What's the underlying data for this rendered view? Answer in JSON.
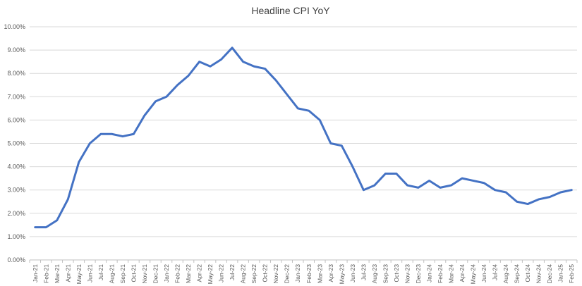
{
  "chart_data": {
    "type": "line",
    "title": "Headline CPI YoY",
    "xlabel": "",
    "ylabel": "",
    "ylim": [
      0,
      10
    ],
    "y_ticks": [
      "0.00%",
      "1.00%",
      "2.00%",
      "3.00%",
      "4.00%",
      "5.00%",
      "6.00%",
      "7.00%",
      "8.00%",
      "9.00%",
      "10.00%"
    ],
    "grid": true,
    "legend": "none",
    "categories": [
      "Jan-21",
      "Feb-21",
      "Mar-21",
      "Apr-21",
      "May-21",
      "Jun-21",
      "Jul-21",
      "Aug-21",
      "Sep-21",
      "Oct-21",
      "Nov-21",
      "Dec-21",
      "Jan-22",
      "Feb-22",
      "Mar-22",
      "Apr-22",
      "May-22",
      "Jun-22",
      "Jul-22",
      "Aug-22",
      "Sep-22",
      "Oct-22",
      "Nov-22",
      "Dec-22",
      "Jan-23",
      "Feb-23",
      "Mar-23",
      "Apr-23",
      "May-23",
      "Jun-23",
      "Jul-23",
      "Aug-23",
      "Sep-23",
      "Oct-23",
      "Nov-23",
      "Dec-23",
      "Jan-24",
      "Feb-24",
      "Mar-24",
      "Apr-24",
      "May-24",
      "Jun-24",
      "Jul-24",
      "Aug-24",
      "Sep-24",
      "Oct-24",
      "Nov-24",
      "Dec-24",
      "Jan-25",
      "Feb-25"
    ],
    "series": [
      {
        "color": "#4472c4",
        "values": [
          1.4,
          1.4,
          1.7,
          2.6,
          4.2,
          5.0,
          5.4,
          5.4,
          5.3,
          5.4,
          6.2,
          6.8,
          7.0,
          7.5,
          7.9,
          8.5,
          8.3,
          8.6,
          9.1,
          8.5,
          8.3,
          8.2,
          7.7,
          7.1,
          6.5,
          6.4,
          6.0,
          5.0,
          4.9,
          4.0,
          3.0,
          3.2,
          3.7,
          3.7,
          3.2,
          3.1,
          3.4,
          3.1,
          3.2,
          3.5,
          3.4,
          3.3,
          3.0,
          2.9,
          2.5,
          2.4,
          2.6,
          2.7,
          2.9,
          3.0
        ]
      }
    ]
  }
}
